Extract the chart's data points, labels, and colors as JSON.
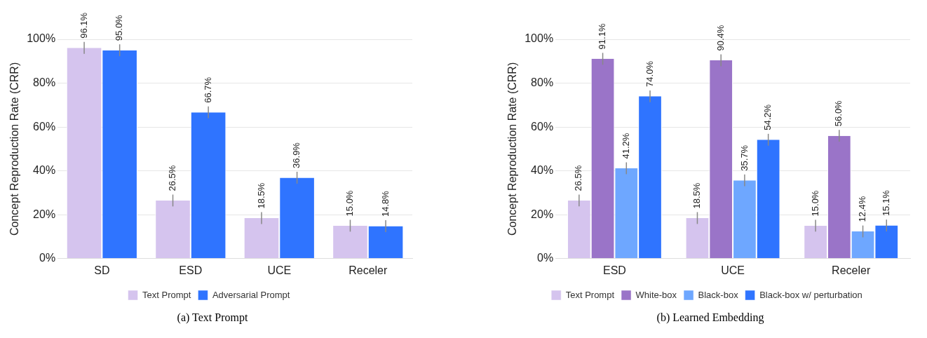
{
  "chart_data": [
    {
      "type": "bar",
      "title": "(a) Text Prompt",
      "ylabel": "Concept Reproduction Rate (CRR)",
      "categories": [
        "SD",
        "ESD",
        "UCE",
        "Receler"
      ],
      "series": [
        {
          "name": "Text Prompt",
          "color": "#d5c4ee",
          "values": [
            96.1,
            26.5,
            18.5,
            15.0
          ],
          "errors": [
            2.7,
            2.7,
            2.7,
            2.7
          ],
          "value_labels": [
            "96.1%",
            "26.5%",
            "18.5%",
            "15.0%"
          ]
        },
        {
          "name": "Adversarial Prompt",
          "color": "#2f74ff",
          "values": [
            95.0,
            66.7,
            36.9,
            14.8
          ],
          "errors": [
            2.7,
            2.7,
            2.7,
            2.7
          ],
          "value_labels": [
            "95.0%",
            "66.7%",
            "36.9%",
            "14.8%"
          ]
        }
      ],
      "ylim": [
        0,
        100
      ],
      "yticks": [
        {
          "value": 0,
          "label": "0%"
        },
        {
          "value": 20,
          "label": "20%"
        },
        {
          "value": 40,
          "label": "40%"
        },
        {
          "value": 60,
          "label": "60%"
        },
        {
          "value": 80,
          "label": "80%"
        },
        {
          "value": 100,
          "label": "100%"
        }
      ],
      "grid": "y",
      "legend": "bottom"
    },
    {
      "type": "bar",
      "title": "(b) Learned Embedding",
      "ylabel": "Concept Reproduction Rate (CRR)",
      "categories": [
        "ESD",
        "UCE",
        "Receler"
      ],
      "series": [
        {
          "name": "Text Prompt",
          "color": "#d5c4ee",
          "values": [
            26.5,
            18.5,
            15.0
          ],
          "errors": [
            2.7,
            2.7,
            2.7
          ],
          "value_labels": [
            "26.5%",
            "18.5%",
            "15.0%"
          ]
        },
        {
          "name": "White-box",
          "color": "#9a74c8",
          "values": [
            91.1,
            90.4,
            56.0
          ],
          "errors": [
            2.7,
            2.7,
            2.7
          ],
          "value_labels": [
            "91.1%",
            "90.4%",
            "56.0%"
          ]
        },
        {
          "name": "Black-box",
          "color": "#6ea7ff",
          "values": [
            41.2,
            35.7,
            12.4
          ],
          "errors": [
            2.7,
            2.7,
            2.7
          ],
          "value_labels": [
            "41.2%",
            "35.7%",
            "12.4%"
          ]
        },
        {
          "name": "Black-box w/ perturbation",
          "color": "#2f74ff",
          "values": [
            74.0,
            54.2,
            15.1
          ],
          "errors": [
            2.7,
            2.7,
            2.7
          ],
          "value_labels": [
            "74.0%",
            "54.2%",
            "15.1%"
          ]
        }
      ],
      "ylim": [
        0,
        100
      ],
      "yticks": [
        {
          "value": 0,
          "label": "0%"
        },
        {
          "value": 20,
          "label": "20%"
        },
        {
          "value": 40,
          "label": "40%"
        },
        {
          "value": 60,
          "label": "60%"
        },
        {
          "value": 80,
          "label": "80%"
        },
        {
          "value": 100,
          "label": "100%"
        }
      ],
      "grid": "y",
      "legend": "bottom"
    }
  ]
}
